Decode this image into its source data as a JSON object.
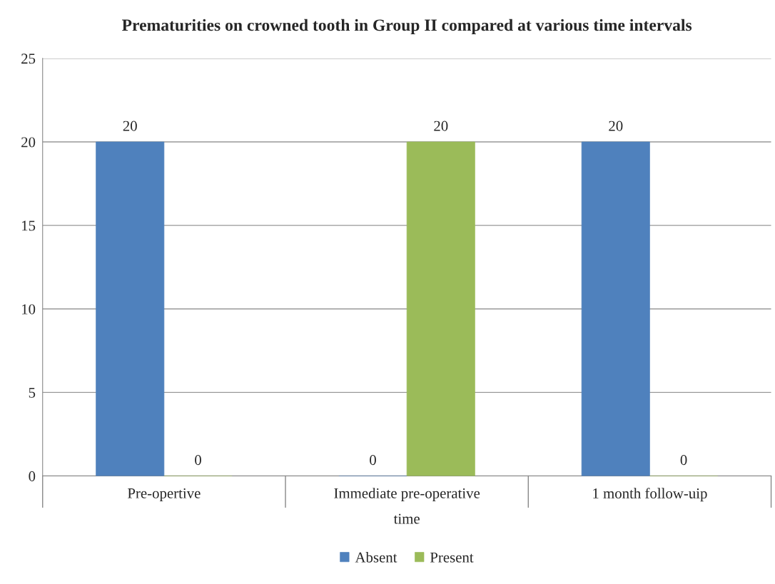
{
  "chart_data": {
    "type": "bar",
    "title": "Prematurities on crowned tooth in Group II compared at various time intervals",
    "categories": [
      "Pre-opertive",
      "Immediate pre-operative",
      "1 month follow-uip"
    ],
    "series": [
      {
        "name": "Absent",
        "color": "#4f81bd",
        "values": [
          20,
          0,
          20
        ]
      },
      {
        "name": "Present",
        "color": "#9bbb59",
        "values": [
          0,
          20,
          0
        ]
      }
    ],
    "xlabel": "time",
    "ylim": [
      0,
      25
    ],
    "yticks": [
      0,
      5,
      10,
      15,
      20,
      25
    ],
    "grid": "y",
    "legend": "bottom",
    "data_labels": true
  }
}
